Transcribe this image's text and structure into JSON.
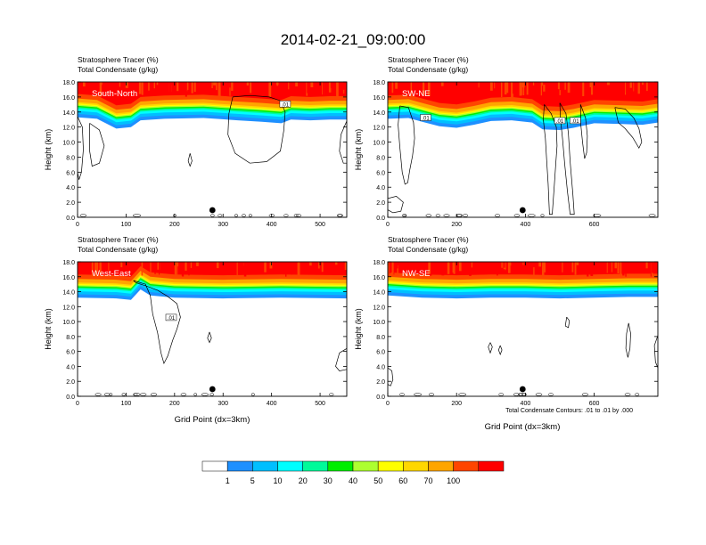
{
  "figure": {
    "title": "2014-02-21_09:00:00",
    "contour_note": "Total Condensate Contours: .01 to .01 by .000",
    "xlabel": "Grid Point (dx=3km)",
    "ylabel": "Height (km)"
  },
  "colors": {
    "scale": [
      "#ffffff",
      "#1e90ff",
      "#00bfff",
      "#00ffff",
      "#00fa9a",
      "#00ee00",
      "#adff2f",
      "#ffff00",
      "#ffd700",
      "#ffa500",
      "#ff4500",
      "#ff0000"
    ],
    "land": "#000000"
  },
  "colorbar": {
    "labels": [
      "1",
      "5",
      "10",
      "20",
      "30",
      "40",
      "50",
      "60",
      "70",
      "100"
    ]
  },
  "chart_data": [
    {
      "type": "heatmap",
      "panel_label": "South-North",
      "title_line1": "Stratosphere Tracer   (%)",
      "title_line2": "Total Condensate   (g/kg)",
      "xlim": [
        0,
        555
      ],
      "ylim": [
        0,
        18
      ],
      "xticks": [
        0,
        100,
        200,
        300,
        400,
        500
      ],
      "yticks": [
        "0.0",
        "2.0",
        "4.0",
        "6.0",
        "8.0",
        "10.0",
        "12.0",
        "14.0",
        "16.0",
        "18.0"
      ],
      "marker_x": 278,
      "tropopause": [
        [
          0,
          15.2
        ],
        [
          40,
          15.0
        ],
        [
          80,
          13.7
        ],
        [
          110,
          13.9
        ],
        [
          130,
          14.8
        ],
        [
          180,
          15.0
        ],
        [
          260,
          15.1
        ],
        [
          330,
          14.8
        ],
        [
          380,
          14.6
        ],
        [
          420,
          14.4
        ],
        [
          440,
          14.9
        ],
        [
          480,
          14.8
        ],
        [
          520,
          14.9
        ],
        [
          555,
          14.9
        ]
      ],
      "contour_labels": [
        {
          "text": ".01",
          "x": 428,
          "y": 15.0
        }
      ],
      "contours": [
        [
          [
            320,
            16
          ],
          [
            355,
            16.2
          ],
          [
            395,
            16
          ],
          [
            418,
            15.5
          ],
          [
            428,
            14
          ],
          [
            425,
            11.5
          ],
          [
            418,
            8.8
          ],
          [
            390,
            7.4
          ],
          [
            355,
            7.2
          ],
          [
            325,
            8.5
          ],
          [
            310,
            11
          ],
          [
            312,
            13.8
          ],
          [
            320,
            16
          ]
        ],
        [
          [
            25,
            12.5
          ],
          [
            45,
            11.6
          ],
          [
            55,
            9.5
          ],
          [
            45,
            7.2
          ],
          [
            30,
            6.8
          ],
          [
            25,
            8.8
          ],
          [
            25,
            12.5
          ]
        ],
        [
          [
            0,
            13.4
          ],
          [
            10,
            12
          ],
          [
            12,
            9
          ],
          [
            8,
            6
          ],
          [
            3,
            5
          ],
          [
            0,
            6
          ]
        ],
        [
          [
            555,
            12.8
          ],
          [
            543,
            11
          ],
          [
            540,
            8.8
          ],
          [
            548,
            7.2
          ],
          [
            555,
            7.2
          ]
        ],
        [
          [
            232,
            8.5
          ],
          [
            236,
            7.5
          ],
          [
            232,
            6.8
          ],
          [
            228,
            7.5
          ],
          [
            232,
            8.5
          ]
        ]
      ]
    },
    {
      "type": "heatmap",
      "panel_label": "SW-NE",
      "title_line1": "Stratosphere Tracer   (%)",
      "title_line2": "Total Condensate   (g/kg)",
      "xlim": [
        0,
        785
      ],
      "ylim": [
        0,
        18
      ],
      "xticks": [
        0,
        200,
        400,
        600
      ],
      "yticks": [
        "0.0",
        "2.0",
        "4.0",
        "6.0",
        "8.0",
        "10.0",
        "12.0",
        "14.0",
        "16.0",
        "18.0"
      ],
      "marker_x": 392,
      "tropopause": [
        [
          0,
          15.0
        ],
        [
          60,
          15.1
        ],
        [
          100,
          14.6
        ],
        [
          150,
          14.0
        ],
        [
          200,
          13.8
        ],
        [
          250,
          14.2
        ],
        [
          300,
          14.7
        ],
        [
          360,
          14.8
        ],
        [
          420,
          14.5
        ],
        [
          450,
          13.6
        ],
        [
          500,
          13.5
        ],
        [
          540,
          13.8
        ],
        [
          600,
          14.4
        ],
        [
          680,
          14.3
        ],
        [
          740,
          14.2
        ],
        [
          785,
          14.5
        ]
      ],
      "contour_labels": [
        {
          "text": ".01",
          "x": 110,
          "y": 13.2
        },
        {
          "text": ".01",
          "x": 500,
          "y": 12.8
        },
        {
          "text": ".01",
          "x": 545,
          "y": 12.8
        }
      ],
      "contours": [
        [
          [
            35,
            14.8
          ],
          [
            60,
            14.6
          ],
          [
            75,
            12.6
          ],
          [
            78,
            10.5
          ],
          [
            72,
            8.2
          ],
          [
            64,
            6.3
          ],
          [
            58,
            4.6
          ],
          [
            50,
            4.4
          ],
          [
            42,
            6.0
          ],
          [
            35,
            9.4
          ],
          [
            30,
            12.3
          ],
          [
            35,
            14.8
          ]
        ],
        [
          [
            455,
            15.0
          ],
          [
            475,
            13.8
          ],
          [
            490,
            12.0
          ],
          [
            492,
            9.5
          ],
          [
            488,
            7.0
          ],
          [
            484,
            4.2
          ],
          [
            478,
            0.4
          ],
          [
            470,
            0.4
          ],
          [
            466,
            4.5
          ],
          [
            462,
            7.5
          ],
          [
            458,
            10.5
          ],
          [
            452,
            13.0
          ],
          [
            455,
            15.0
          ]
        ],
        [
          [
            500,
            15.2
          ],
          [
            518,
            13.8
          ],
          [
            525,
            11.2
          ],
          [
            530,
            7.4
          ],
          [
            538,
            3.0
          ],
          [
            542,
            0.4
          ],
          [
            530,
            0.4
          ],
          [
            522,
            3.5
          ],
          [
            514,
            7.2
          ],
          [
            508,
            10.4
          ],
          [
            502,
            13.0
          ],
          [
            500,
            15.2
          ]
        ],
        [
          [
            560,
            15.0
          ],
          [
            575,
            13.2
          ],
          [
            580,
            10.8
          ],
          [
            578,
            8.6
          ],
          [
            572,
            7.8
          ],
          [
            566,
            10.0
          ],
          [
            561,
            12.4
          ],
          [
            560,
            15.0
          ]
        ],
        [
          [
            660,
            14.6
          ],
          [
            690,
            14.4
          ],
          [
            715,
            13.2
          ],
          [
            730,
            11.8
          ],
          [
            738,
            10.0
          ],
          [
            730,
            9.2
          ],
          [
            712,
            10.6
          ],
          [
            690,
            11.8
          ],
          [
            670,
            12.6
          ],
          [
            660,
            14.6
          ]
        ],
        [
          [
            0,
            2.5
          ],
          [
            25,
            2.8
          ],
          [
            45,
            2.0
          ],
          [
            38,
            0.8
          ],
          [
            15,
            0.6
          ],
          [
            0,
            1.0
          ]
        ]
      ]
    },
    {
      "type": "heatmap",
      "panel_label": "West-East",
      "title_line1": "Stratosphere Tracer   (%)",
      "title_line2": "Total Condensate   (g/kg)",
      "xlim": [
        0,
        555
      ],
      "ylim": [
        0,
        18
      ],
      "xticks": [
        0,
        100,
        200,
        300,
        400,
        500
      ],
      "yticks": [
        "0.0",
        "2.0",
        "4.0",
        "6.0",
        "8.0",
        "10.0",
        "12.0",
        "14.0",
        "16.0",
        "18.0"
      ],
      "marker_x": 278,
      "tropopause": [
        [
          0,
          15.1
        ],
        [
          80,
          15.0
        ],
        [
          110,
          14.8
        ],
        [
          130,
          16.2
        ],
        [
          150,
          15.4
        ],
        [
          200,
          15.1
        ],
        [
          300,
          15.0
        ],
        [
          420,
          15.1
        ],
        [
          555,
          15.0
        ]
      ],
      "contour_labels": [
        {
          "text": ".01",
          "x": 193,
          "y": 10.5
        }
      ],
      "contours": [
        [
          [
            115,
            15.5
          ],
          [
            140,
            15.0
          ],
          [
            150,
            13.5
          ],
          [
            155,
            11.0
          ],
          [
            165,
            8.5
          ],
          [
            172,
            5.8
          ],
          [
            178,
            4.4
          ],
          [
            186,
            5.4
          ],
          [
            196,
            7.5
          ],
          [
            205,
            9.0
          ],
          [
            212,
            10.6
          ],
          [
            205,
            12.4
          ],
          [
            185,
            13.4
          ],
          [
            165,
            14.2
          ],
          [
            140,
            14.8
          ],
          [
            120,
            15.2
          ],
          [
            115,
            15.5
          ]
        ],
        [
          [
            555,
            6.4
          ],
          [
            540,
            5.8
          ],
          [
            532,
            4.0
          ],
          [
            540,
            3.4
          ],
          [
            555,
            3.6
          ]
        ],
        [
          [
            272,
            8.6
          ],
          [
            276,
            7.8
          ],
          [
            272,
            7.2
          ],
          [
            268,
            7.8
          ],
          [
            272,
            8.6
          ]
        ]
      ]
    },
    {
      "type": "heatmap",
      "panel_label": "NW-SE",
      "title_line1": "Stratosphere Tracer   (%)",
      "title_line2": "Total Condensate   (g/kg)",
      "xlim": [
        0,
        785
      ],
      "ylim": [
        0,
        18
      ],
      "xticks": [
        0,
        200,
        400,
        600
      ],
      "yticks": [
        "0.0",
        "2.0",
        "4.0",
        "6.0",
        "8.0",
        "10.0",
        "12.0",
        "14.0",
        "16.0",
        "18.0"
      ],
      "marker_x": 392,
      "tropopause": [
        [
          0,
          15.4
        ],
        [
          100,
          15.1
        ],
        [
          200,
          15.0
        ],
        [
          300,
          15.1
        ],
        [
          400,
          15.1
        ],
        [
          500,
          15.0
        ],
        [
          600,
          15.1
        ],
        [
          700,
          15.2
        ],
        [
          785,
          15.2
        ]
      ],
      "contour_labels": [],
      "contours": [
        [
          [
            700,
            9.8
          ],
          [
            706,
            8.4
          ],
          [
            704,
            6.4
          ],
          [
            698,
            5.2
          ],
          [
            692,
            6.4
          ],
          [
            694,
            8.4
          ],
          [
            700,
            9.8
          ]
        ],
        [
          [
            0,
            3.8
          ],
          [
            12,
            3.4
          ],
          [
            15,
            2.2
          ],
          [
            8,
            1.4
          ],
          [
            0,
            1.6
          ]
        ],
        [
          [
            790,
            8.8
          ],
          [
            775,
            6.8
          ],
          [
            778,
            4.6
          ],
          [
            785,
            3.8
          ]
        ],
        [
          [
            298,
            7.2
          ],
          [
            304,
            6.6
          ],
          [
            298,
            5.8
          ],
          [
            292,
            6.6
          ],
          [
            298,
            7.2
          ]
        ],
        [
          [
            327,
            6.8
          ],
          [
            332,
            6.2
          ],
          [
            327,
            5.6
          ],
          [
            322,
            6.2
          ],
          [
            327,
            6.8
          ]
        ],
        [
          [
            520,
            10.6
          ],
          [
            528,
            10.1
          ],
          [
            525,
            9.2
          ],
          [
            516,
            9.4
          ],
          [
            520,
            10.6
          ]
        ]
      ]
    }
  ]
}
